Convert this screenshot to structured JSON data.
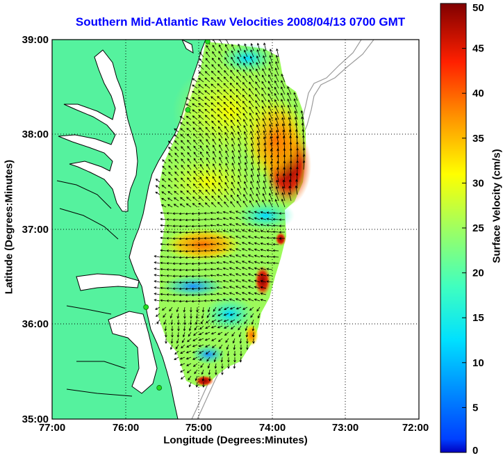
{
  "title": "Southern Mid-Atlantic Raw Velocities 2008/04/13 0700 GMT",
  "xlabel": "Longitude (Degrees:Minutes)",
  "ylabel": "Latitude (Degrees:Minutes)",
  "colorbar": {
    "label": "Surface Velocity (cm/s)",
    "range": [
      0,
      50
    ],
    "ticks": [
      "0",
      "5",
      "10",
      "15",
      "20",
      "25",
      "30",
      "35",
      "40",
      "45",
      "50"
    ],
    "colormap": "jet"
  },
  "map": {
    "lon_range": [
      -77,
      -72
    ],
    "lat_range": [
      35,
      39
    ],
    "x_ticks": [
      "77:00",
      "76:00",
      "75:00",
      "74:00",
      "73:00",
      "72:00"
    ],
    "y_ticks": [
      "39:00",
      "38:00",
      "37:00",
      "36:00",
      "35:00"
    ],
    "grid": "dotted",
    "land_color": "#55f29e",
    "site_color": "#22dd22"
  },
  "chart_data": {
    "type": "heatmap",
    "sites": [
      {
        "lon": -74.88,
        "lat": 38.98
      },
      {
        "lon": -75.15,
        "lat": 38.26
      },
      {
        "lon": -75.72,
        "lat": 36.18
      },
      {
        "lon": -75.54,
        "lat": 35.33
      }
    ]
  }
}
